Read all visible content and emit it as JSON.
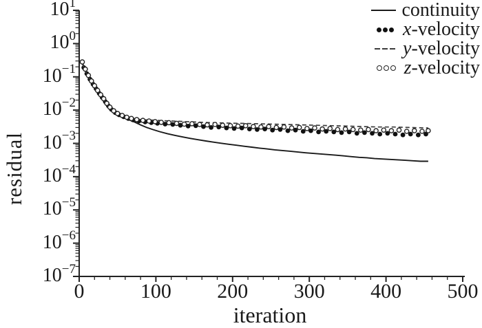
{
  "chart_data": {
    "type": "line",
    "title": "",
    "xlabel": "iteration",
    "ylabel": "residual",
    "x_scale": "linear",
    "y_scale": "log",
    "xlim": [
      0,
      500
    ],
    "x_ticks": [
      0,
      100,
      200,
      300,
      400,
      500
    ],
    "x_minor_step": 20,
    "y_tick_exponents": [
      1,
      0,
      -1,
      -2,
      -3,
      -4,
      -5,
      -6,
      -7
    ],
    "ylim_exponents": [
      -7,
      1
    ],
    "grid": false,
    "background_color": "#ffffff",
    "axis_color": "#222222",
    "text_color": "#1a1a1a",
    "legend": {
      "position": "top-right",
      "items": [
        {
          "symbol": "solid-line",
          "italic_prefix": "",
          "label": "continuity"
        },
        {
          "symbol": "filled-dots",
          "italic_prefix": "x",
          "label": "-velocity"
        },
        {
          "symbol": "dashed-line",
          "italic_prefix": "y",
          "label": "-velocity"
        },
        {
          "symbol": "open-circles",
          "italic_prefix": "z",
          "label": "-velocity"
        }
      ]
    },
    "series": [
      {
        "name": "continuity",
        "style": "solid-line",
        "color": "#1a1a1a",
        "points": [
          [
            4,
            0.27
          ],
          [
            8,
            0.16
          ],
          [
            12,
            0.105
          ],
          [
            16,
            0.072
          ],
          [
            20,
            0.052
          ],
          [
            24,
            0.038
          ],
          [
            28,
            0.028
          ],
          [
            32,
            0.021
          ],
          [
            36,
            0.0155
          ],
          [
            40,
            0.0118
          ],
          [
            45,
            0.0092
          ],
          [
            50,
            0.0076
          ],
          [
            55,
            0.0066
          ],
          [
            60,
            0.0058
          ],
          [
            66,
            0.005
          ],
          [
            72,
            0.0044
          ],
          [
            80,
            0.0036
          ],
          [
            88,
            0.003
          ],
          [
            96,
            0.0026
          ],
          [
            105,
            0.00225
          ],
          [
            115,
            0.00196
          ],
          [
            125,
            0.00174
          ],
          [
            135,
            0.00156
          ],
          [
            145,
            0.00141
          ],
          [
            155,
            0.00129
          ],
          [
            165,
            0.00118
          ],
          [
            175,
            0.00109
          ],
          [
            185,
            0.00101
          ],
          [
            195,
            0.00094
          ],
          [
            205,
            0.00088
          ],
          [
            215,
            0.00082
          ],
          [
            225,
            0.00077
          ],
          [
            235,
            0.00072
          ],
          [
            245,
            0.00068
          ],
          [
            255,
            0.00064
          ],
          [
            265,
            0.00061
          ],
          [
            275,
            0.00058
          ],
          [
            285,
            0.00055
          ],
          [
            295,
            0.00052
          ],
          [
            305,
            0.0005
          ],
          [
            315,
            0.00048
          ],
          [
            325,
            0.00046
          ],
          [
            335,
            0.00044
          ],
          [
            345,
            0.00042
          ],
          [
            355,
            0.0004
          ],
          [
            365,
            0.00038
          ],
          [
            375,
            0.00037
          ],
          [
            385,
            0.00035
          ],
          [
            395,
            0.00034
          ],
          [
            405,
            0.00033
          ],
          [
            415,
            0.00032
          ],
          [
            425,
            0.00031
          ],
          [
            435,
            0.0003
          ],
          [
            445,
            0.00029
          ],
          [
            455,
            0.00029
          ]
        ]
      },
      {
        "name": "x-velocity",
        "style": "filled-dots",
        "color": "#111111",
        "points": [
          [
            6,
            0.19
          ],
          [
            10,
            0.125
          ],
          [
            14,
            0.085
          ],
          [
            18,
            0.06
          ],
          [
            22,
            0.044
          ],
          [
            26,
            0.032
          ],
          [
            30,
            0.024
          ],
          [
            34,
            0.018
          ],
          [
            38,
            0.0135
          ],
          [
            42,
            0.0105
          ],
          [
            47,
            0.0084
          ],
          [
            52,
            0.0072
          ],
          [
            58,
            0.0063
          ],
          [
            64,
            0.0056
          ],
          [
            70,
            0.0051
          ],
          [
            78,
            0.0047
          ],
          [
            86,
            0.0044
          ],
          [
            94,
            0.0042
          ],
          [
            102,
            0.004
          ],
          [
            112,
            0.0038
          ],
          [
            122,
            0.0037
          ],
          [
            132,
            0.0035
          ],
          [
            142,
            0.0033
          ],
          [
            152,
            0.0034
          ],
          [
            162,
            0.0032
          ],
          [
            172,
            0.003
          ],
          [
            182,
            0.0031
          ],
          [
            192,
            0.0029
          ],
          [
            202,
            0.0028
          ],
          [
            212,
            0.0029
          ],
          [
            222,
            0.0027
          ],
          [
            232,
            0.0026
          ],
          [
            242,
            0.0027
          ],
          [
            252,
            0.0025
          ],
          [
            262,
            0.0026
          ],
          [
            272,
            0.0024
          ],
          [
            282,
            0.0025
          ],
          [
            292,
            0.0023
          ],
          [
            302,
            0.0024
          ],
          [
            312,
            0.0022
          ],
          [
            322,
            0.0023
          ],
          [
            332,
            0.0022
          ],
          [
            342,
            0.0021
          ],
          [
            352,
            0.0022
          ],
          [
            362,
            0.002
          ],
          [
            372,
            0.0021
          ],
          [
            382,
            0.002
          ],
          [
            392,
            0.0019
          ],
          [
            402,
            0.002
          ],
          [
            412,
            0.0019
          ],
          [
            422,
            0.0018
          ],
          [
            432,
            0.0019
          ],
          [
            442,
            0.0018
          ],
          [
            452,
            0.0019
          ]
        ]
      },
      {
        "name": "y-velocity",
        "style": "dashed-line",
        "color": "#3a3a3a",
        "points": [
          [
            4,
            0.25
          ],
          [
            8,
            0.15
          ],
          [
            12,
            0.1
          ],
          [
            16,
            0.07
          ],
          [
            20,
            0.051
          ],
          [
            24,
            0.037
          ],
          [
            28,
            0.0275
          ],
          [
            32,
            0.0205
          ],
          [
            36,
            0.0152
          ],
          [
            40,
            0.0116
          ],
          [
            45,
            0.0091
          ],
          [
            50,
            0.0076
          ],
          [
            55,
            0.0067
          ],
          [
            60,
            0.0061
          ],
          [
            66,
            0.0057
          ],
          [
            72,
            0.0054
          ],
          [
            80,
            0.0052
          ],
          [
            88,
            0.0051
          ],
          [
            96,
            0.005
          ],
          [
            110,
            0.0048
          ],
          [
            130,
            0.0046
          ],
          [
            150,
            0.0044
          ],
          [
            170,
            0.0042
          ],
          [
            190,
            0.0041
          ],
          [
            210,
            0.004
          ],
          [
            230,
            0.0039
          ],
          [
            250,
            0.0038
          ],
          [
            270,
            0.0037
          ],
          [
            290,
            0.0036
          ],
          [
            310,
            0.0035
          ],
          [
            330,
            0.0034
          ],
          [
            350,
            0.0033
          ],
          [
            370,
            0.0032
          ],
          [
            390,
            0.0031
          ],
          [
            410,
            0.0031
          ],
          [
            430,
            0.003
          ],
          [
            455,
            0.0029
          ]
        ]
      },
      {
        "name": "z-velocity",
        "style": "open-circles",
        "color": "#222222",
        "points": [
          [
            4,
            0.28
          ],
          [
            8,
            0.17
          ],
          [
            12,
            0.11
          ],
          [
            16,
            0.075
          ],
          [
            20,
            0.054
          ],
          [
            24,
            0.039
          ],
          [
            28,
            0.029
          ],
          [
            32,
            0.022
          ],
          [
            36,
            0.016
          ],
          [
            40,
            0.0122
          ],
          [
            45,
            0.0095
          ],
          [
            50,
            0.0079
          ],
          [
            56,
            0.0069
          ],
          [
            62,
            0.0061
          ],
          [
            68,
            0.0056
          ],
          [
            75,
            0.0052
          ],
          [
            83,
            0.0049
          ],
          [
            91,
            0.0047
          ],
          [
            99,
            0.0045
          ],
          [
            107,
            0.0043
          ],
          [
            117,
            0.0042
          ],
          [
            127,
            0.004
          ],
          [
            137,
            0.0038
          ],
          [
            147,
            0.0039
          ],
          [
            157,
            0.0037
          ],
          [
            167,
            0.0036
          ],
          [
            177,
            0.0037
          ],
          [
            187,
            0.0035
          ],
          [
            197,
            0.0034
          ],
          [
            207,
            0.0033
          ],
          [
            217,
            0.0034
          ],
          [
            227,
            0.0032
          ],
          [
            237,
            0.0031
          ],
          [
            247,
            0.0032
          ],
          [
            257,
            0.003
          ],
          [
            267,
            0.0031
          ],
          [
            277,
            0.0029
          ],
          [
            287,
            0.003
          ],
          [
            297,
            0.0028
          ],
          [
            307,
            0.0029
          ],
          [
            317,
            0.0027
          ],
          [
            327,
            0.0028
          ],
          [
            337,
            0.0026
          ],
          [
            347,
            0.0027
          ],
          [
            357,
            0.0026
          ],
          [
            367,
            0.0025
          ],
          [
            377,
            0.0026
          ],
          [
            387,
            0.0024
          ],
          [
            397,
            0.0025
          ],
          [
            407,
            0.0024
          ],
          [
            417,
            0.0025
          ],
          [
            427,
            0.0023
          ],
          [
            437,
            0.0024
          ],
          [
            447,
            0.0023
          ],
          [
            455,
            0.0024
          ]
        ]
      }
    ]
  }
}
